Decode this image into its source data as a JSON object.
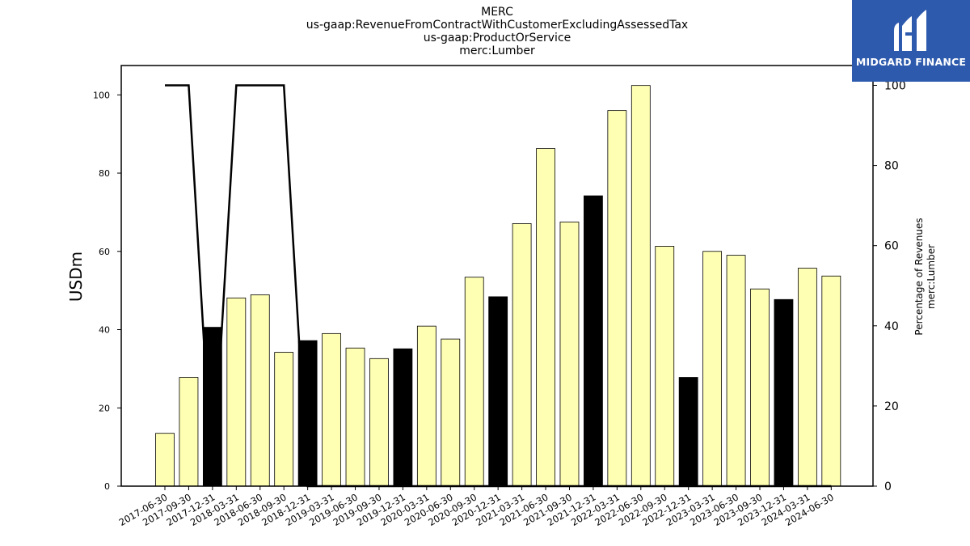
{
  "title_lines": [
    "MERC",
    "us-gaap:RevenueFromContractWithCustomerExcludingAssessedTax",
    "us-gaap:ProductOrService",
    "merc:Lumber"
  ],
  "logo": {
    "text": "MIDGARD FINANCE",
    "color": "#2d5aad"
  },
  "chart_data": {
    "type": "bar",
    "ylabel": "USDm",
    "y2label_lines": [
      "Percentage of Revenues",
      "merc:Lumber"
    ],
    "ylim": [
      0,
      107.5
    ],
    "y2lim": [
      0,
      100
    ],
    "yticks": [
      0,
      20,
      40,
      60,
      80,
      100
    ],
    "y2ticks": [
      0,
      20,
      40,
      60,
      80,
      100
    ],
    "grid": false,
    "categories": [
      "2017-06-30",
      "2017-09-30",
      "2017-12-31",
      "2018-03-31",
      "2018-06-30",
      "2018-09-30",
      "2018-12-31",
      "2019-03-31",
      "2019-06-30",
      "2019-09-30",
      "2019-12-31",
      "2020-03-31",
      "2020-06-30",
      "2020-09-30",
      "2020-12-31",
      "2021-03-31",
      "2021-06-30",
      "2021-09-30",
      "2021-12-31",
      "2022-03-31",
      "2022-06-30",
      "2022-09-30",
      "2022-12-31",
      "2023-03-31",
      "2023-06-30",
      "2023-09-30",
      "2023-12-31",
      "2024-03-31",
      "2024-06-30"
    ],
    "series": [
      {
        "type": "bar",
        "values": [
          13.5,
          27.8,
          40.6,
          48.1,
          48.9,
          34.2,
          37.2,
          39.0,
          35.3,
          32.6,
          35.1,
          40.9,
          37.6,
          53.4,
          48.4,
          67.1,
          86.3,
          67.5,
          74.2,
          96.0,
          102.4,
          61.3,
          27.8,
          60.0,
          59.0,
          50.4,
          47.7,
          55.7,
          53.7
        ],
        "colors_by_quarter": {
          "q4": "#000000",
          "other": "#ffffb3"
        }
      },
      {
        "type": "line",
        "axis": "right",
        "color": "#000000",
        "values": [
          100,
          100,
          0,
          100,
          100,
          100,
          0,
          0,
          0,
          0,
          0,
          0,
          0,
          0,
          0,
          0,
          0,
          0,
          0,
          0,
          0,
          0,
          0,
          0,
          0,
          0,
          0,
          0,
          0
        ]
      }
    ]
  }
}
